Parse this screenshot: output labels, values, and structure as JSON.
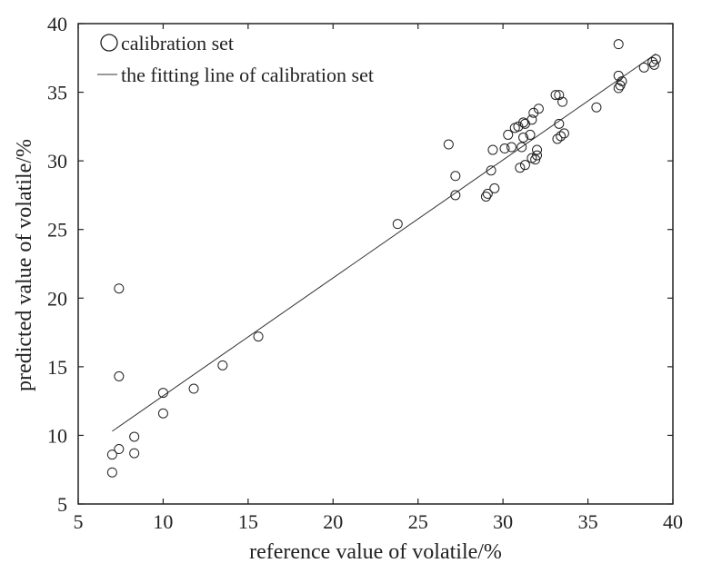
{
  "chart_data": {
    "type": "scatter",
    "xlabel": "reference value of volatile/%",
    "ylabel": "predicted value of volatile/%",
    "xlim": [
      5,
      40
    ],
    "ylim": [
      5,
      40
    ],
    "xticks": [
      "5",
      "10",
      "15",
      "20",
      "25",
      "30",
      "35",
      "40"
    ],
    "yticks": [
      "5",
      "10",
      "15",
      "20",
      "25",
      "30",
      "35",
      "40"
    ],
    "grid": false,
    "legend_position": "top-left",
    "series": [
      {
        "name": "calibration set",
        "kind": "scatter",
        "marker": "open-circle",
        "points": [
          [
            7.0,
            7.3
          ],
          [
            7.0,
            8.6
          ],
          [
            7.4,
            9.0
          ],
          [
            7.4,
            20.7
          ],
          [
            7.4,
            14.3
          ],
          [
            8.3,
            9.9
          ],
          [
            8.3,
            8.7
          ],
          [
            10.0,
            13.1
          ],
          [
            10.0,
            11.6
          ],
          [
            11.8,
            13.4
          ],
          [
            13.5,
            15.1
          ],
          [
            15.6,
            17.2
          ],
          [
            23.8,
            25.4
          ],
          [
            26.8,
            31.2
          ],
          [
            27.2,
            28.9
          ],
          [
            27.2,
            27.5
          ],
          [
            29.0,
            27.4
          ],
          [
            29.1,
            27.6
          ],
          [
            29.3,
            29.3
          ],
          [
            29.5,
            28.0
          ],
          [
            29.4,
            30.8
          ],
          [
            30.1,
            30.9
          ],
          [
            30.3,
            31.9
          ],
          [
            30.5,
            31.0
          ],
          [
            30.7,
            32.4
          ],
          [
            30.9,
            32.5
          ],
          [
            31.0,
            29.5
          ],
          [
            31.1,
            31.0
          ],
          [
            31.2,
            31.7
          ],
          [
            31.2,
            32.8
          ],
          [
            31.3,
            32.7
          ],
          [
            31.3,
            29.7
          ],
          [
            31.6,
            31.9
          ],
          [
            31.7,
            30.2
          ],
          [
            31.7,
            33.0
          ],
          [
            31.8,
            33.5
          ],
          [
            31.9,
            30.1
          ],
          [
            32.0,
            30.4
          ],
          [
            32.0,
            30.8
          ],
          [
            32.1,
            33.8
          ],
          [
            33.1,
            34.8
          ],
          [
            33.2,
            31.6
          ],
          [
            33.3,
            34.8
          ],
          [
            33.3,
            32.7
          ],
          [
            33.4,
            31.8
          ],
          [
            33.5,
            34.3
          ],
          [
            33.6,
            32.0
          ],
          [
            35.5,
            33.9
          ],
          [
            36.8,
            38.5
          ],
          [
            36.8,
            35.3
          ],
          [
            36.8,
            36.2
          ],
          [
            36.9,
            35.5
          ],
          [
            37.0,
            35.8
          ],
          [
            38.3,
            36.8
          ],
          [
            38.8,
            37.2
          ],
          [
            38.9,
            37.0
          ],
          [
            39.0,
            37.4
          ]
        ]
      },
      {
        "name": "the fitting line of calibration set",
        "kind": "line",
        "points": [
          [
            7.0,
            10.3
          ],
          [
            39.0,
            37.8
          ]
        ]
      }
    ]
  }
}
